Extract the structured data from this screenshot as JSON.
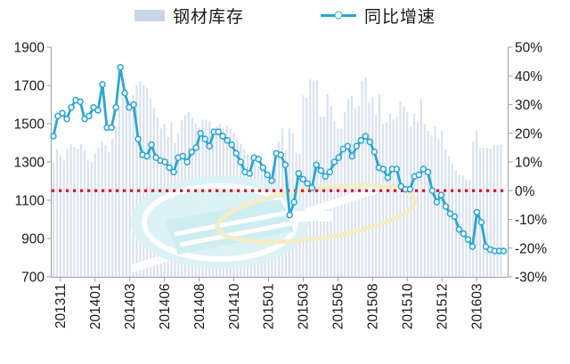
{
  "legend": {
    "bars": "钢材库存",
    "line": "同比增速"
  },
  "colors": {
    "bar": "#d9e2ef",
    "legend_bar_swatch": "#c9d6e8",
    "line": "#29a5d6",
    "marker_fill": "#ffffff",
    "zero_line": "#dd1126",
    "axis": "#9aa0a6",
    "text": "#1a1a1a",
    "watermark_cyan": "#dcf3f5",
    "watermark_cyan_dark": "#cdeef2",
    "watermark_yellow": "#f5eec5"
  },
  "chart_data": {
    "type": "combo",
    "title": "",
    "frequency": "weekly",
    "x_tick_labels": [
      "201311",
      "201401",
      "201403",
      "201406",
      "201408",
      "201410",
      "201501",
      "201503",
      "201505",
      "201508",
      "201510",
      "201512",
      "201603"
    ],
    "x_tick_every_weeks": 10,
    "left_axis": {
      "label": "钢材库存",
      "min": 700,
      "max": 1900,
      "step": 200,
      "tick_labels": [
        "1900",
        "1700",
        "1500",
        "1300",
        "1100",
        "900",
        "700"
      ]
    },
    "right_axis": {
      "label": "同比增速",
      "min": -30,
      "max": 50,
      "step": 10,
      "format": "percent",
      "tick_labels": [
        "50%",
        "40%",
        "30%",
        "20%",
        "10%",
        "0%",
        "-10%",
        "-20%",
        "-30%"
      ]
    },
    "reference_line": {
      "axis": "right",
      "value": 0,
      "style": "dotted"
    },
    "series": [
      {
        "name": "钢材库存",
        "type": "bar",
        "axis": "left",
        "values": [
          1300,
          1368,
          1335,
          1310,
          1370,
          1395,
          1380,
          1370,
          1395,
          1360,
          1312,
          1302,
          1344,
          1372,
          1405,
          1390,
          1350,
          1420,
          1490,
          1580,
          1640,
          1665,
          1620,
          1650,
          1700,
          1720,
          1700,
          1685,
          1630,
          1585,
          1530,
          1475,
          1500,
          1430,
          1508,
          1400,
          1452,
          1520,
          1545,
          1560,
          1530,
          1500,
          1480,
          1520,
          1522,
          1513,
          1475,
          1485,
          1498,
          1475,
          1490,
          1475,
          1452,
          1424,
          1396,
          1368,
          1340,
          1321,
          1302,
          1280,
          1255,
          1230,
          1210,
          1230,
          1292,
          1405,
          1475,
          1360,
          1475,
          1450,
          1349,
          1344,
          1648,
          1639,
          1732,
          1725,
          1730,
          1536,
          1536,
          1653,
          1592,
          1513,
          1475,
          1475,
          1560,
          1629,
          1648,
          1578,
          1592,
          1723,
          1741,
          1615,
          1639,
          1545,
          1653,
          1498,
          1508,
          1554,
          1522,
          1536,
          1615,
          1592,
          1559,
          1484,
          1554,
          1508,
          1629,
          1498,
          1461,
          1438,
          1484,
          1419,
          1461,
          1368,
          1330,
          1288,
          1256,
          1232,
          1228,
          1209,
          1204,
          1405,
          1461,
          1373,
          1373,
          1373,
          1368,
          1390,
          1385,
          1390
        ]
      },
      {
        "name": "同比增速",
        "type": "line",
        "axis": "right",
        "marker": "circle",
        "values": [
          19,
          26,
          27,
          25,
          29,
          31.5,
          31,
          25,
          26,
          29,
          28,
          37,
          22,
          22,
          29,
          43,
          34,
          29,
          30,
          18,
          12.5,
          12,
          16,
          11.5,
          10.5,
          10,
          8,
          6.5,
          11.5,
          12,
          10,
          13.5,
          15,
          20,
          18,
          15.5,
          20.5,
          20.5,
          19,
          17.5,
          16,
          13,
          10,
          6.5,
          6,
          11.5,
          11,
          8,
          5.5,
          3.5,
          13,
          12.5,
          9,
          -8.5,
          -4,
          6,
          4,
          2.5,
          1,
          9,
          7,
          5,
          6.5,
          10,
          11.5,
          14.5,
          15.5,
          12,
          15.5,
          17.5,
          19,
          17,
          13.5,
          8,
          7.5,
          4.5,
          7.5,
          7.5,
          1.5,
          0.5,
          0.5,
          5,
          5.5,
          7.5,
          6.5,
          0,
          -4,
          -1.5,
          -5.5,
          -8,
          -9,
          -13.5,
          -15,
          -17,
          -19.5,
          -7.5,
          -11,
          -19.5,
          -20.5,
          -21,
          -21,
          -21
        ]
      }
    ]
  }
}
